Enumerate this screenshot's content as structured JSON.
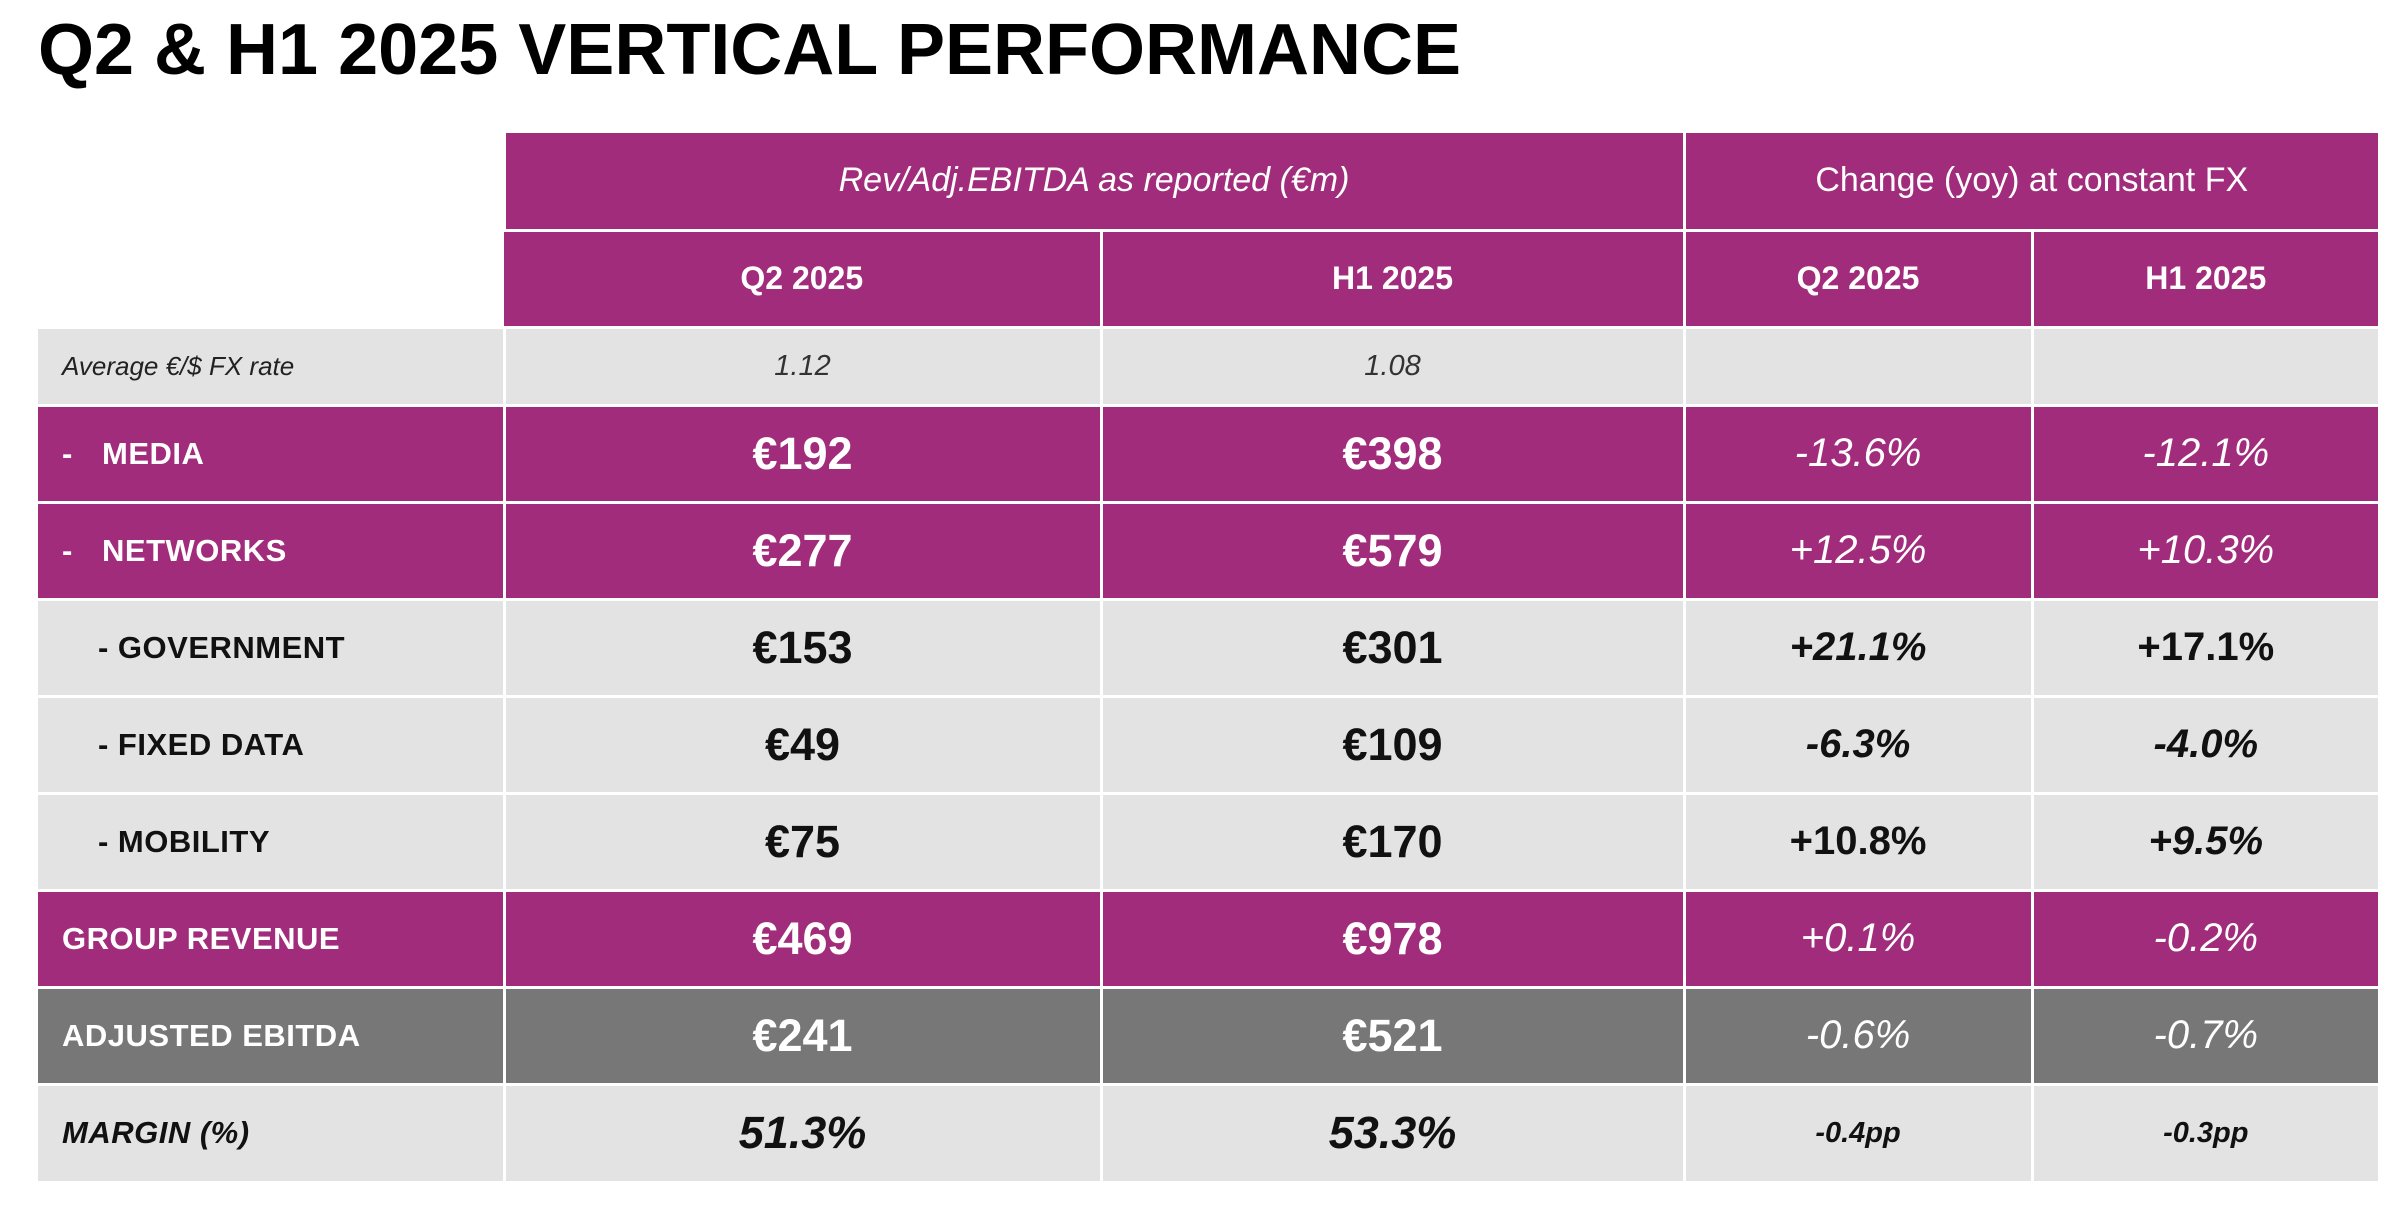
{
  "title": "Q2 & H1 2025 VERTICAL PERFORMANCE",
  "colors": {
    "magenta": "#a12c7b",
    "light_grey": "#e3e3e3",
    "dark_grey": "#777777"
  },
  "header": {
    "group_reported": "Rev/Adj.EBITDA as reported (€m)",
    "group_change": "Change (yoy) at constant FX",
    "cols": [
      "Q2 2025",
      "H1 2025",
      "Q2 2025",
      "H1 2025"
    ]
  },
  "fx_row": {
    "label": "Average €/$ FX rate",
    "q2": "1.12",
    "h1": "1.08"
  },
  "rows": [
    {
      "label": "MEDIA",
      "prefix": "-",
      "q2": "€192",
      "h1": "€398",
      "chg_q2": "-13.6%",
      "chg_h1": "-12.1%"
    },
    {
      "label": "NETWORKS",
      "prefix": "-",
      "q2": "€277",
      "h1": "€579",
      "chg_q2": "+12.5%",
      "chg_h1": "+10.3%"
    },
    {
      "label": "- GOVERNMENT",
      "q2": "€153",
      "h1": "€301",
      "chg_q2": "+21.1%",
      "chg_h1": "+17.1%"
    },
    {
      "label": "- FIXED DATA",
      "q2": "€49",
      "h1": "€109",
      "chg_q2": "-6.3%",
      "chg_h1": "-4.0%"
    },
    {
      "label": "- MOBILITY",
      "q2": "€75",
      "h1": "€170",
      "chg_q2": "+10.8%",
      "chg_h1": "+9.5%"
    },
    {
      "label": "GROUP REVENUE",
      "q2": "€469",
      "h1": "€978",
      "chg_q2": "+0.1%",
      "chg_h1": "-0.2%"
    },
    {
      "label": "ADJUSTED EBITDA",
      "q2": "€241",
      "h1": "€521",
      "chg_q2": "-0.6%",
      "chg_h1": "-0.7%"
    },
    {
      "label": "MARGIN (%)",
      "q2": "51.3%",
      "h1": "53.3%",
      "chg_q2": "-0.4pp",
      "chg_h1": "-0.3pp"
    }
  ]
}
